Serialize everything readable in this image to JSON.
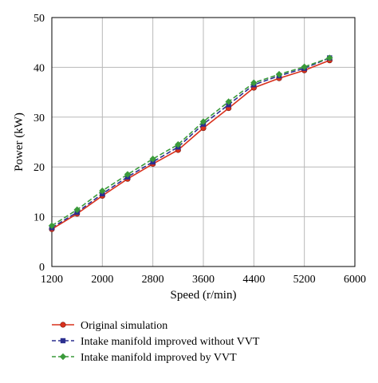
{
  "chart_data": {
    "type": "line",
    "title": "",
    "xlabel": "Speed (r/min)",
    "ylabel": "Power (kW)",
    "xlim": [
      1200,
      6000
    ],
    "ylim": [
      0,
      50
    ],
    "xticks": [
      "1200",
      "2000",
      "2800",
      "3600",
      "4400",
      "5200",
      "6000"
    ],
    "yticks": [
      "0",
      "10",
      "20",
      "30",
      "40",
      "50"
    ],
    "grid": true,
    "legend_position": "bottom",
    "x": [
      1200,
      1600,
      2000,
      2400,
      2800,
      3200,
      3600,
      4000,
      4400,
      4800,
      5200,
      5600
    ],
    "series": [
      {
        "name": "Original simulation",
        "color": "#d9301c",
        "marker": "circle",
        "line_style": "solid",
        "values": [
          7.5,
          10.6,
          14.2,
          17.6,
          20.6,
          23.4,
          27.8,
          31.8,
          35.9,
          37.8,
          39.4,
          41.4
        ]
      },
      {
        "name": "Intake manifold improved without VVT",
        "color": "#2b2f8f",
        "marker": "square",
        "line_style": "dashed",
        "values": [
          7.8,
          10.9,
          14.6,
          18.0,
          21.0,
          24.0,
          28.6,
          32.5,
          36.5,
          38.3,
          39.8,
          41.9
        ]
      },
      {
        "name": "Intake manifold improved by VVT",
        "color": "#3a9a3a",
        "marker": "diamond",
        "line_style": "dashed",
        "values": [
          8.2,
          11.4,
          15.2,
          18.5,
          21.6,
          24.5,
          29.1,
          33.1,
          36.9,
          38.6,
          40.1,
          41.9
        ]
      }
    ]
  }
}
